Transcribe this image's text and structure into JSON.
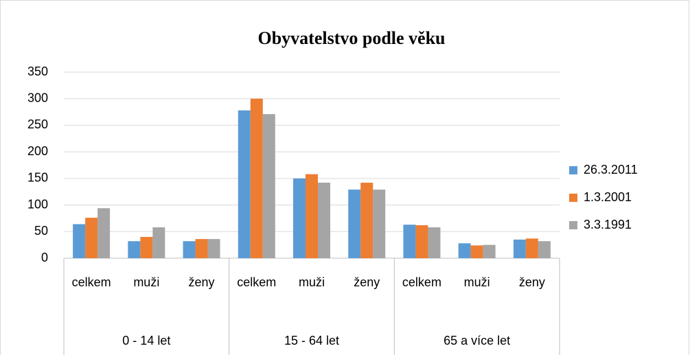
{
  "chart_data": {
    "type": "bar",
    "title": "Obyvatelstvo podle věku",
    "categories": [
      "celkem",
      "muži",
      "ženy",
      "celkem",
      "muži",
      "ženy",
      "celkem",
      "muži",
      "ženy"
    ],
    "category_groups": [
      "0 - 14 let",
      "15 - 64 let",
      "65 a více let"
    ],
    "series": [
      {
        "name": "26.3.2011",
        "color": "#5b9bd5",
        "values": [
          64,
          32,
          32,
          278,
          150,
          129,
          63,
          28,
          35
        ]
      },
      {
        "name": "1.3.2001",
        "color": "#ed7d31",
        "values": [
          76,
          40,
          36,
          300,
          158,
          142,
          62,
          24,
          37
        ]
      },
      {
        "name": "3.3.1991",
        "color": "#a5a5a5",
        "values": [
          94,
          58,
          36,
          271,
          142,
          129,
          58,
          25,
          32
        ]
      }
    ],
    "ylim": [
      0,
      350
    ],
    "yticks": [
      0,
      50,
      100,
      150,
      200,
      250,
      300,
      350
    ],
    "grid": true,
    "legend": "right"
  }
}
